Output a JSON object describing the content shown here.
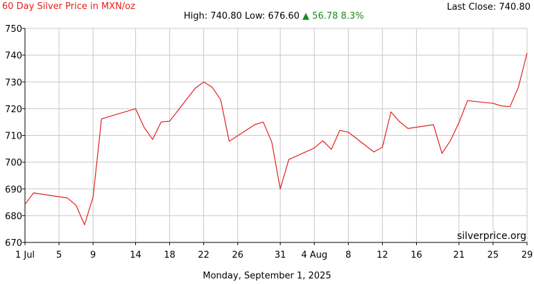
{
  "header": {
    "title": "60 Day Silver Price in MXN/oz",
    "last_close": "Last Close: 740.80",
    "high_low": "High: 740.80 Low: 676.60",
    "change": "▲ 56.78 8.3%"
  },
  "watermark": "silverprice.org",
  "footer_date": "Monday, September 1, 2025",
  "colors": {
    "line": "#e0201c",
    "grid": "#c8c8c8",
    "up": "#1a8a1a"
  },
  "chart_data": {
    "type": "line",
    "title": "60 Day Silver Price in MXN/oz",
    "xlabel": "",
    "ylabel": "",
    "x_start": "2025-07-01",
    "x_end": "2025-08-29",
    "ylim": [
      670,
      750
    ],
    "yticks": [
      670,
      680,
      690,
      700,
      710,
      720,
      730,
      740,
      750
    ],
    "xtick_labels": [
      "1 Jul",
      "5",
      "9",
      "14",
      "18",
      "22",
      "26",
      "31",
      "4 Aug",
      "8",
      "12",
      "16",
      "21",
      "25",
      "29"
    ],
    "xtick_dates": [
      "2025-07-01",
      "2025-07-05",
      "2025-07-09",
      "2025-07-14",
      "2025-07-18",
      "2025-07-22",
      "2025-07-26",
      "2025-07-31",
      "2025-08-04",
      "2025-08-08",
      "2025-08-12",
      "2025-08-16",
      "2025-08-21",
      "2025-08-25",
      "2025-08-29"
    ],
    "grid": true,
    "series": [
      {
        "x": [
          "2025-07-01",
          "2025-07-02",
          "2025-07-06",
          "2025-07-07",
          "2025-07-08",
          "2025-07-09",
          "2025-07-10",
          "2025-07-14",
          "2025-07-15",
          "2025-07-16",
          "2025-07-17",
          "2025-07-18",
          "2025-07-21",
          "2025-07-22",
          "2025-07-23",
          "2025-07-24",
          "2025-07-25",
          "2025-07-28",
          "2025-07-29",
          "2025-07-30",
          "2025-07-31",
          "2025-08-01",
          "2025-08-04",
          "2025-08-05",
          "2025-08-06",
          "2025-08-07",
          "2025-08-08",
          "2025-08-11",
          "2025-08-12",
          "2025-08-13",
          "2025-08-14",
          "2025-08-15",
          "2025-08-18",
          "2025-08-19",
          "2025-08-20",
          "2025-08-21",
          "2025-08-22",
          "2025-08-25",
          "2025-08-26",
          "2025-08-27",
          "2025-08-28",
          "2025-08-29"
        ],
        "values": [
          684.2,
          688.5,
          686.6,
          683.9,
          676.6,
          687.0,
          716.2,
          720.0,
          713.0,
          708.5,
          715.0,
          715.3,
          727.6,
          730.0,
          728.0,
          723.3,
          707.8,
          714.0,
          715.0,
          707.5,
          690.0,
          701.0,
          705.3,
          708.0,
          704.8,
          711.9,
          711.2,
          703.8,
          705.6,
          718.8,
          715.2,
          712.6,
          714.0,
          703.3,
          708.1,
          714.8,
          723.0,
          722.0,
          721.0,
          720.8,
          728.2,
          740.8
        ]
      }
    ]
  }
}
